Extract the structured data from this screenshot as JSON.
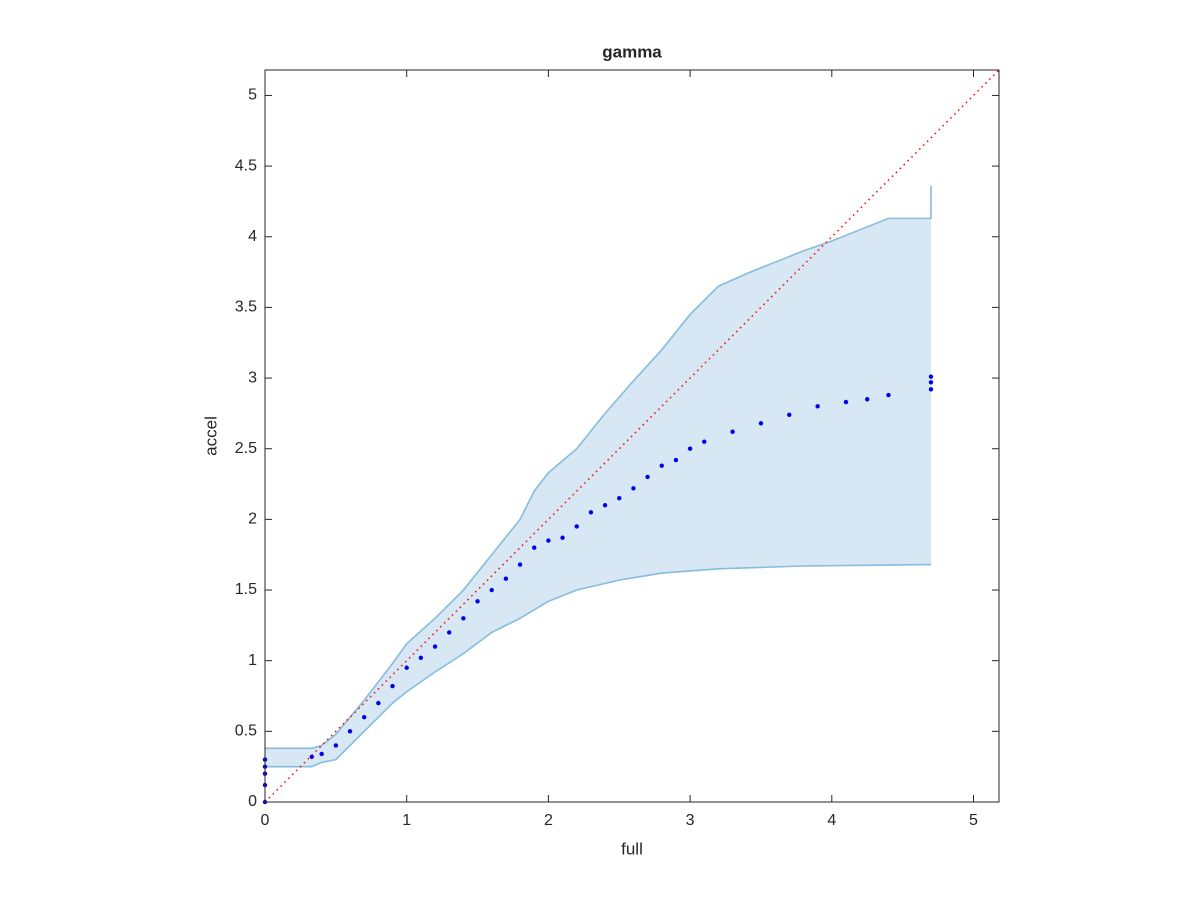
{
  "chart_data": {
    "type": "qq",
    "title": "gamma",
    "x_label": "full",
    "y_label": "accel",
    "xlim": [
      0,
      5.18
    ],
    "ylim": [
      0,
      5.18
    ],
    "xticks": [
      0,
      1,
      2,
      3,
      4,
      5
    ],
    "yticks": [
      0,
      0.5,
      1,
      1.5,
      2,
      2.5,
      3,
      3.5,
      4,
      4.5,
      5
    ],
    "band_fill": "#d7e7f3",
    "series": [
      {
        "style": "band-upper",
        "color": "#86bcdd",
        "x": [
          0,
          0.33,
          0.4,
          0.5,
          0.6,
          0.7,
          0.8,
          0.9,
          1.0,
          1.2,
          1.4,
          1.6,
          1.8,
          1.9,
          2.0,
          2.2,
          2.4,
          2.6,
          2.8,
          3.0,
          3.2,
          3.4,
          3.6,
          3.8,
          4.0,
          4.2,
          4.4,
          4.7,
          4.7
        ],
        "values": [
          0.38,
          0.38,
          0.4,
          0.48,
          0.6,
          0.72,
          0.85,
          0.98,
          1.12,
          1.3,
          1.5,
          1.75,
          2.0,
          2.2,
          2.33,
          2.5,
          2.75,
          2.98,
          3.2,
          3.45,
          3.65,
          3.74,
          3.82,
          3.9,
          3.97,
          4.05,
          4.13,
          4.13,
          4.36
        ]
      },
      {
        "style": "band-lower",
        "color": "#86bcdd",
        "x": [
          0,
          0.33,
          0.4,
          0.5,
          0.6,
          0.7,
          0.8,
          0.9,
          1.0,
          1.2,
          1.4,
          1.6,
          1.8,
          2.0,
          2.2,
          2.5,
          2.8,
          3.2,
          3.8,
          4.7
        ],
        "values": [
          0.25,
          0.25,
          0.28,
          0.3,
          0.4,
          0.5,
          0.6,
          0.7,
          0.78,
          0.92,
          1.05,
          1.2,
          1.3,
          1.42,
          1.5,
          1.57,
          1.62,
          1.65,
          1.67,
          1.68
        ]
      },
      {
        "style": "scatter",
        "color": "#0000ee",
        "x": [
          0,
          0,
          0,
          0,
          0,
          0.33,
          0.4,
          0.5,
          0.6,
          0.7,
          0.8,
          0.9,
          1.0,
          1.1,
          1.2,
          1.3,
          1.4,
          1.5,
          1.6,
          1.7,
          1.8,
          1.9,
          2.0,
          2.1,
          2.2,
          2.3,
          2.4,
          2.5,
          2.6,
          2.7,
          2.8,
          2.9,
          3.0,
          3.1,
          3.3,
          3.5,
          3.7,
          3.9,
          4.1,
          4.25,
          4.4,
          4.7,
          4.7,
          4.7
        ],
        "values": [
          0,
          0.12,
          0.2,
          0.25,
          0.3,
          0.32,
          0.34,
          0.4,
          0.5,
          0.6,
          0.7,
          0.82,
          0.95,
          1.02,
          1.1,
          1.2,
          1.3,
          1.42,
          1.5,
          1.58,
          1.68,
          1.8,
          1.85,
          1.87,
          1.95,
          2.05,
          2.1,
          2.15,
          2.22,
          2.3,
          2.38,
          2.42,
          2.5,
          2.55,
          2.62,
          2.68,
          2.74,
          2.8,
          2.83,
          2.85,
          2.88,
          2.92,
          2.97,
          3.01
        ]
      },
      {
        "style": "dotted-line",
        "color": "#ff0000",
        "x": [
          0,
          5.18
        ],
        "values": [
          0,
          5.18
        ]
      }
    ]
  }
}
